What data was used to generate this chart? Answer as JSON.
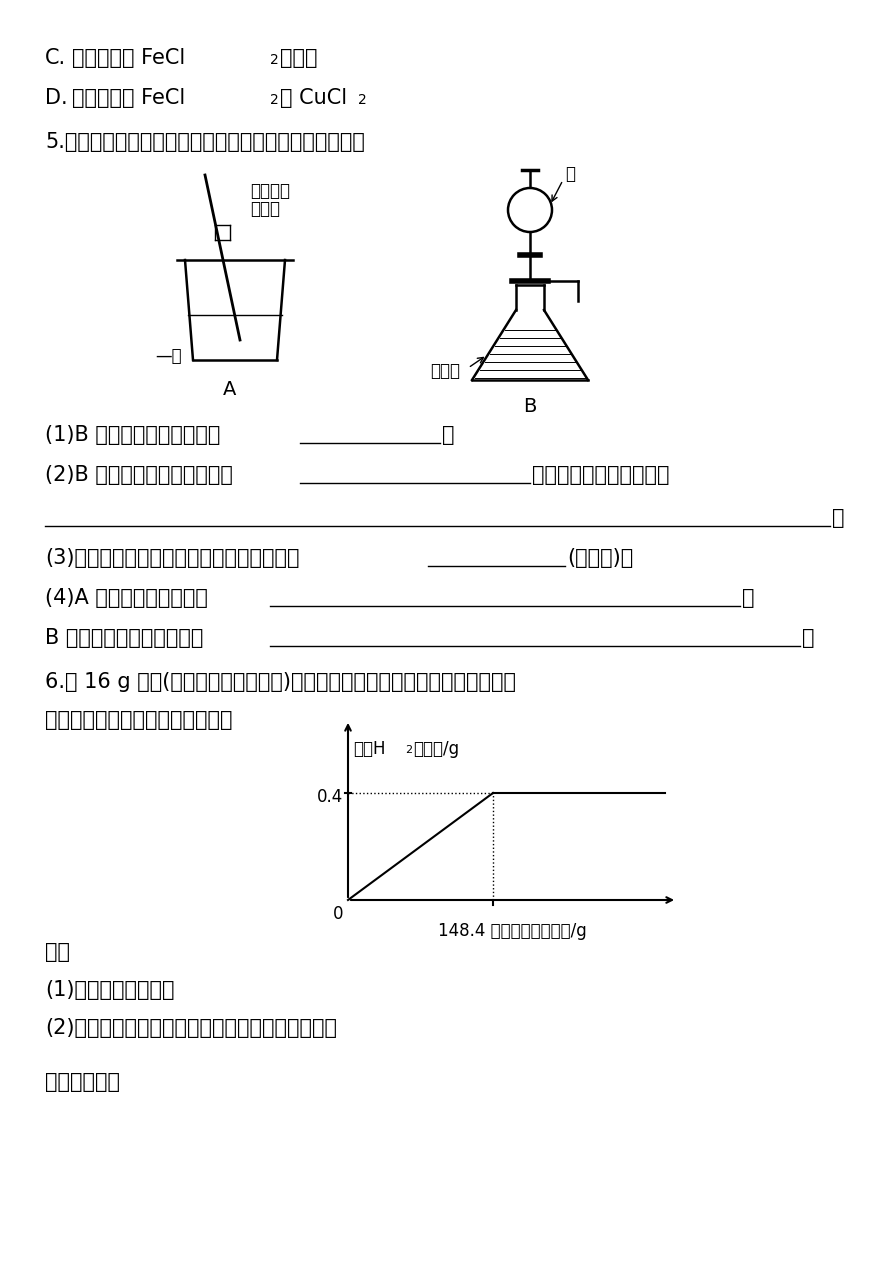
{
  "bg_color": "#ffffff",
  "text_color": "#000000",
  "line_C1": "C.",
  "line_C2": "滤液中含有 FeCl",
  "line_C2b": "和盐酸",
  "line_D1": "D.",
  "line_D2": "滤液中含有 FeCl",
  "line_D2b": "和 CuCl",
  "q5_text": "5.如图所示，是两种税释浓硫酸的操作，回答下列问题：",
  "label_A": "A",
  "label_B": "B",
  "label_stir": "不断搅拌",
  "label_nongA": "浓硫酸",
  "label_waterA": "—水",
  "label_waterB": "水",
  "label_nongB": "浓硫酸",
  "q51_text": "(1)B 图中加水仪器的名称是",
  "q52_text": "(2)B 图锥形瓶内产生的现象是",
  "q52_cont": "。产生这一现象的原因是",
  "q53_text": "(3)上边两幅图中，税释浓硫酸操作正确的是",
  "q53_cont": "(填序号)。",
  "q54_text": "(4)A 图中玻璃棒的作用是",
  "q54b_text": "B 图中的玻璃导管的作用是",
  "q6_line1": "6.向 16 g 黄铜(由锅、铜形成的合金)样品中加入税硫酸充分反应，所加税硫酸",
  "q6_line2": "与生成气体的质量关系如图所示。",
  "graph_ylabel1": "生成H",
  "graph_ylabel2": "的质量/g",
  "graph_xlabel": "148.4 加入税硫酸的质量/g",
  "graph_ytick": "0.4",
  "graph_x0": "0",
  "qiu_text": "求：",
  "q61_text": "(1)样品中锅的质量。",
  "q62_text": "(2)恰好完全反应时，所得溶液中溶质的质量分数。",
  "last_text": "《探究创新》"
}
